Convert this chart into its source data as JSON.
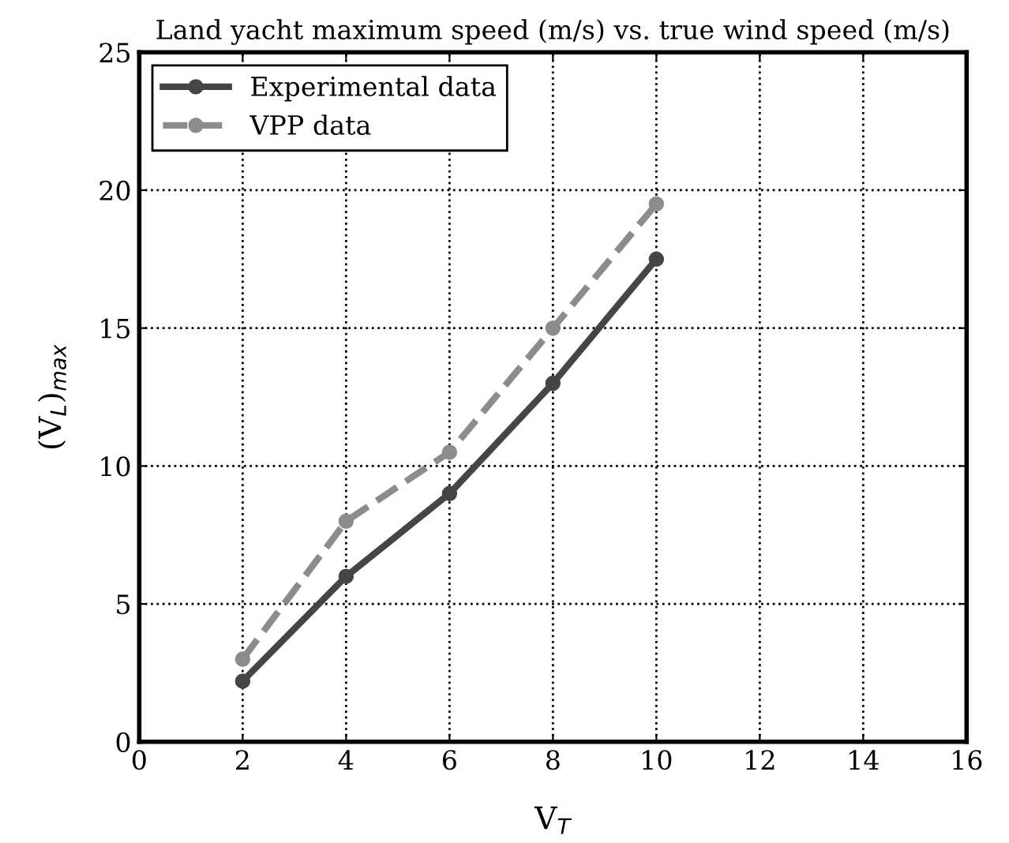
{
  "chart_data": {
    "type": "line",
    "title": "Land yacht maximum speed (m/s) vs. true wind speed (m/s)",
    "xlabel": "V$_{T}$",
    "ylabel": "(V$_{L}$)$_{max}$",
    "x": [
      2,
      4,
      6,
      8,
      10
    ],
    "series": [
      {
        "name": "Experimental data",
        "color": "#454545",
        "values": [
          2.2,
          6,
          9,
          13,
          17.5
        ],
        "line_style": "solid"
      },
      {
        "name": "VPP data",
        "color": "#8c8c8c",
        "values": [
          3,
          8,
          10.5,
          15,
          19.5
        ],
        "line_style": "dashed"
      }
    ],
    "xlim": [
      0,
      16
    ],
    "ylim": [
      0,
      25
    ],
    "xticks": [
      0,
      2,
      4,
      6,
      8,
      10,
      12,
      14,
      16
    ],
    "yticks": [
      0,
      5,
      10,
      15,
      20,
      25
    ],
    "grid": true,
    "legend": "top left",
    "marker": "circle"
  }
}
